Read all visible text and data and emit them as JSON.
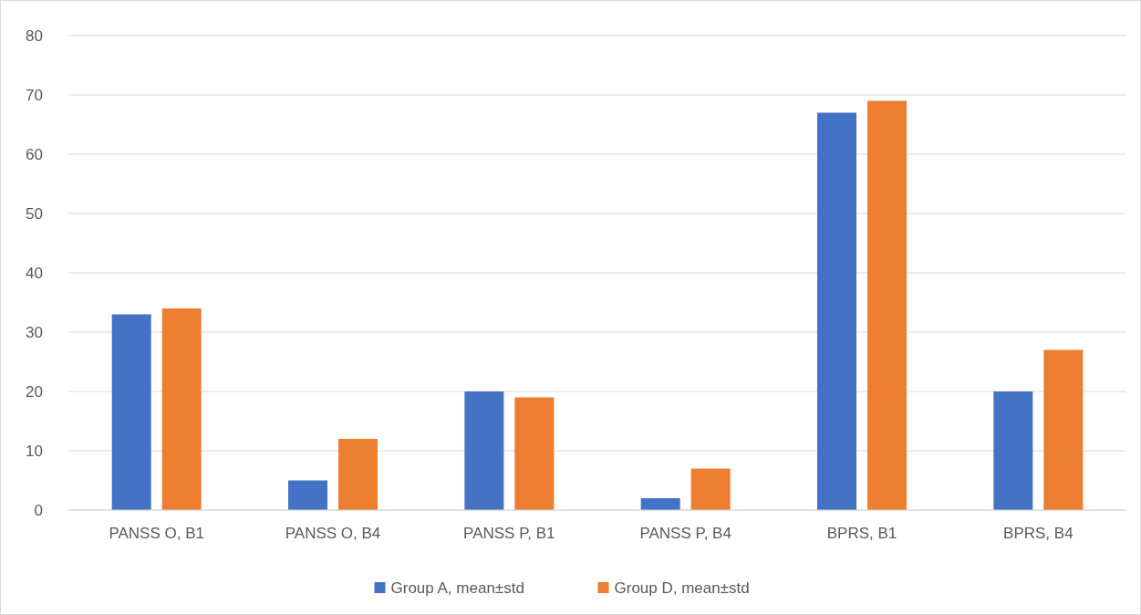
{
  "chart_data": {
    "type": "bar",
    "categories": [
      "PANSS O, B1",
      "PANSS O, B4",
      "PANSS P, B1",
      "PANSS P, B4",
      "BPRS, B1",
      "BPRS, B4"
    ],
    "series": [
      {
        "name": "Group A, mean±std",
        "color": "#4472c4",
        "values": [
          33,
          5,
          20,
          2,
          67,
          20
        ]
      },
      {
        "name": "Group D, mean±std",
        "color": "#ed7d31",
        "values": [
          34,
          12,
          19,
          7,
          69,
          27
        ]
      }
    ],
    "ylim": [
      0,
      80
    ],
    "yticks": [
      0,
      10,
      20,
      30,
      40,
      50,
      60,
      70,
      80
    ],
    "grid": "y",
    "legend": "bottom"
  }
}
